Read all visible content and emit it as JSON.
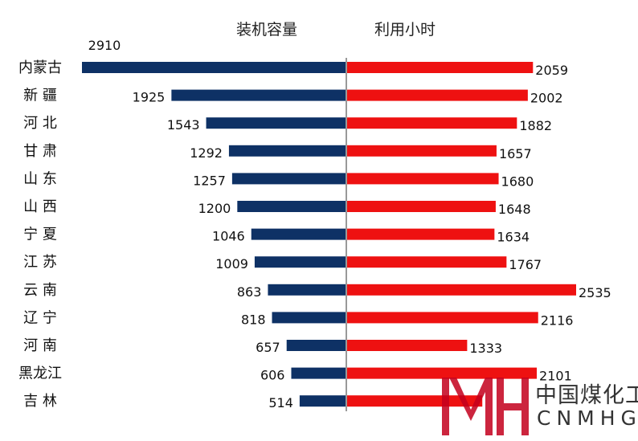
{
  "chart_data": {
    "type": "bar",
    "orientation": "horizontal-butterfly",
    "categories": [
      "内蒙古",
      "新 疆",
      "河 北",
      "甘 肃",
      "山 东",
      "山 西",
      "宁 夏",
      "江 苏",
      "云 南",
      "辽 宁",
      "河 南",
      "黑龙江",
      "吉 林"
    ],
    "series": [
      {
        "name": "装机容量",
        "color": "#0e3165",
        "direction": "left",
        "values": [
          2910,
          1925,
          1543,
          1292,
          1257,
          1200,
          1046,
          1009,
          863,
          818,
          657,
          606,
          514
        ]
      },
      {
        "name": "利用小时",
        "color": "#ee1111",
        "direction": "right",
        "values": [
          2059,
          2002,
          1882,
          1657,
          1680,
          1648,
          1634,
          1767,
          2535,
          2116,
          1333,
          2101,
          1500
        ]
      }
    ],
    "axis_color": "#999999"
  },
  "watermark": {
    "logo_letters": "MH",
    "cn_text": "中国煤化工",
    "en_text": "CNMHG",
    "logo_color": "#c4001d"
  }
}
